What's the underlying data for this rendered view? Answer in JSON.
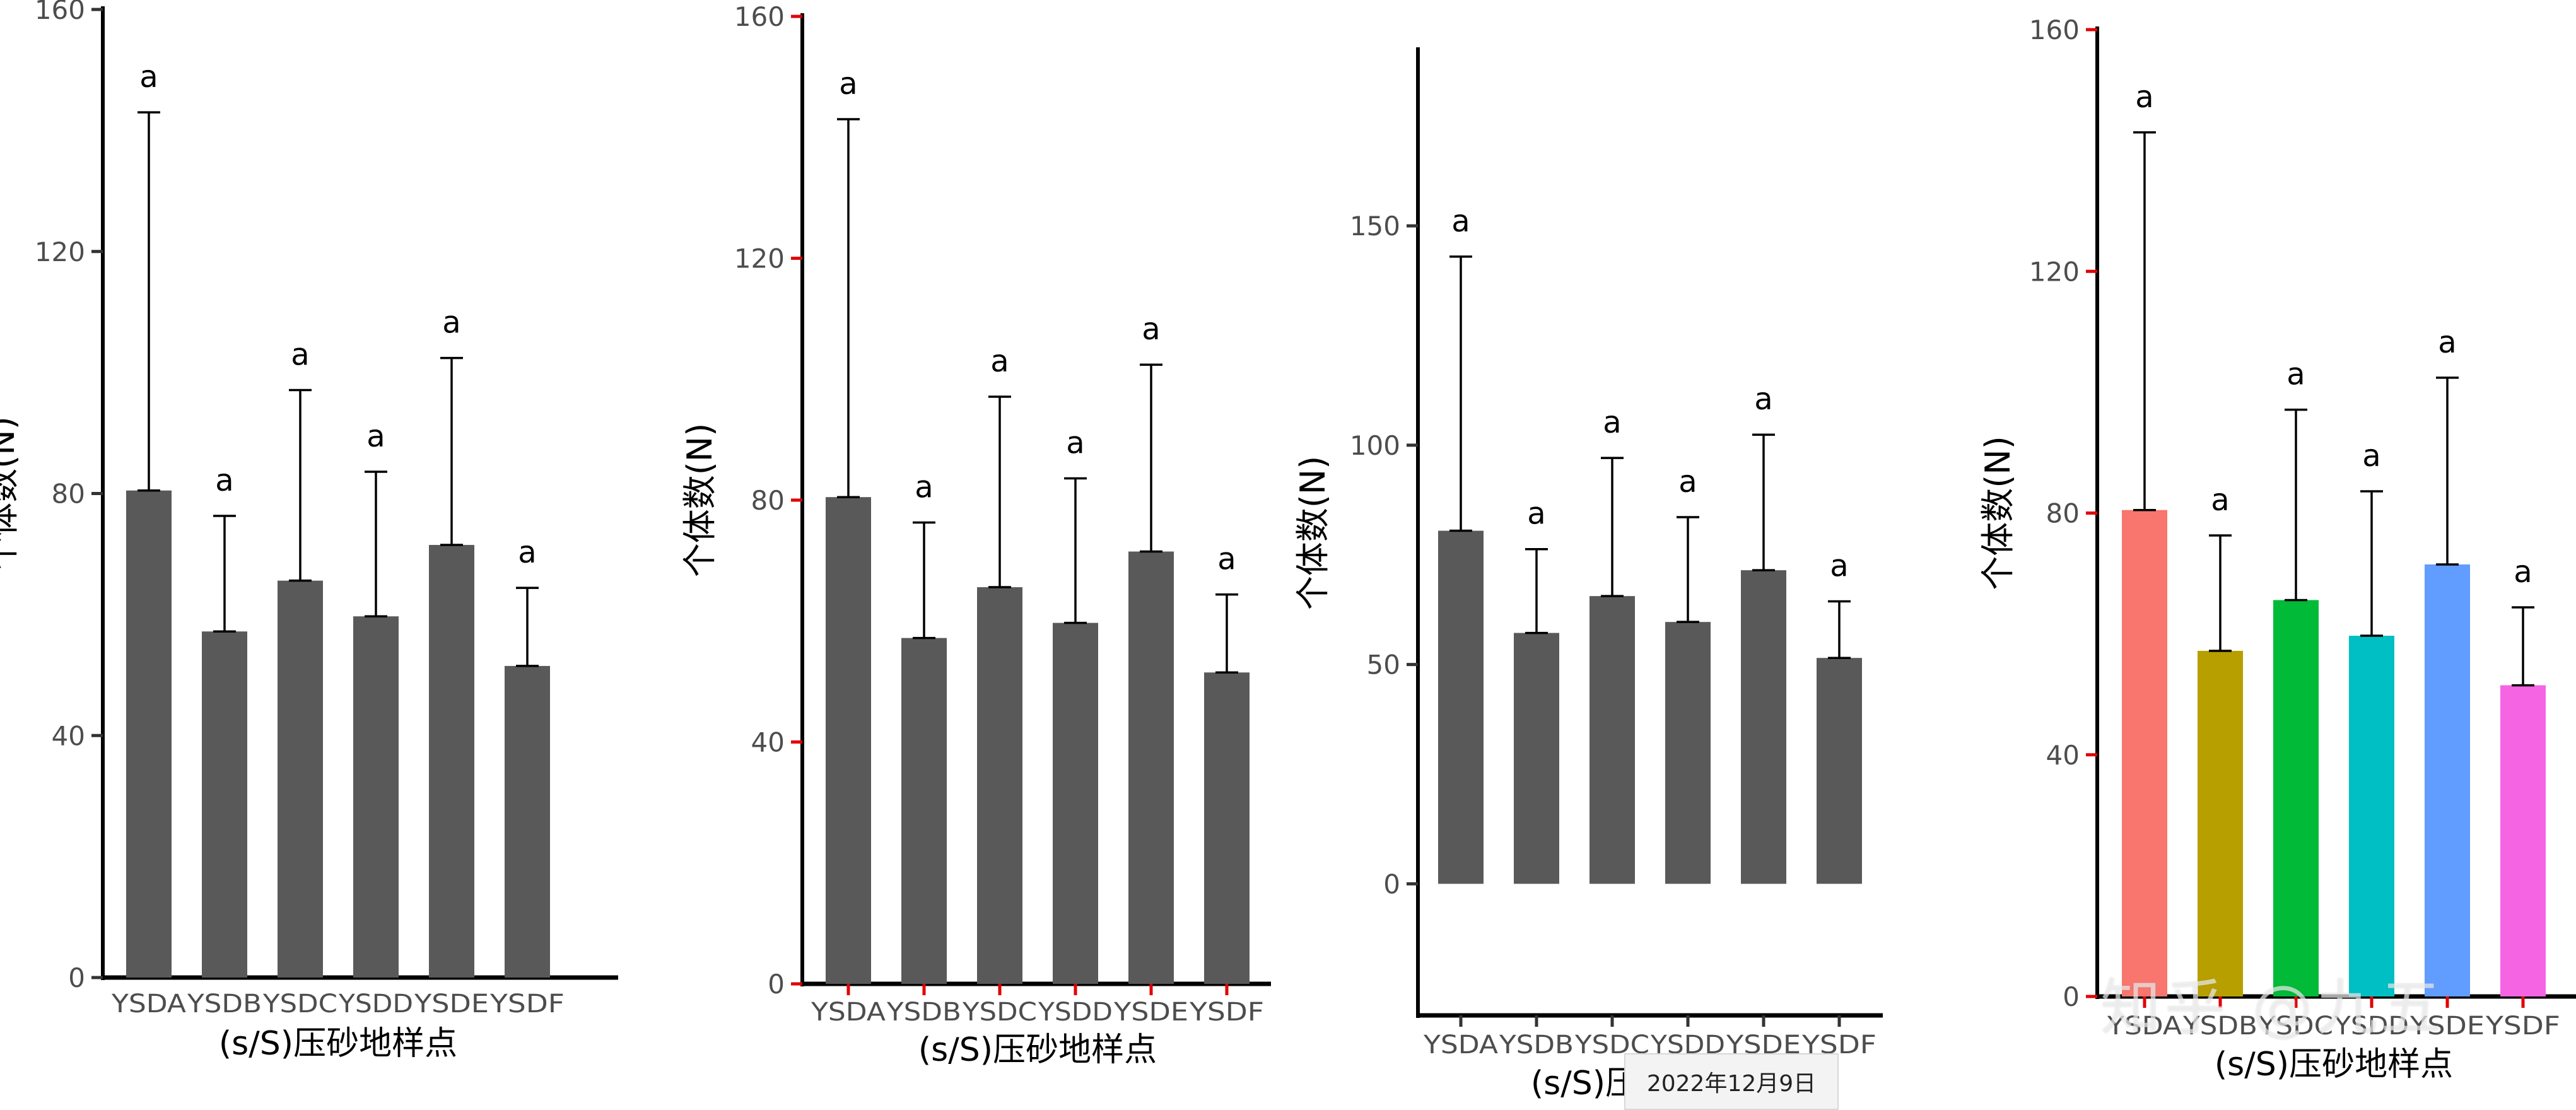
{
  "chart_data": [
    {
      "type": "bar",
      "categories": [
        "YSDA",
        "YSDB",
        "YSDC",
        "YSDD",
        "YSDE",
        "YSDF"
      ],
      "values": [
        80.5,
        57.2,
        65.6,
        59.7,
        71.5,
        51.5
      ],
      "error_upper": [
        143,
        76.3,
        97.1,
        83.6,
        102.4,
        64.4
      ],
      "significance": [
        "a",
        "a",
        "a",
        "a",
        "a",
        "a"
      ],
      "xlabel": "(s/S)压砂地样点",
      "ylabel": "个体数(N)",
      "ylim": [
        0,
        160
      ],
      "yticks": [
        0,
        40,
        80,
        120,
        160
      ],
      "bar_color": "#595959",
      "tick_color": "#333333",
      "grid": false
    },
    {
      "type": "bar",
      "categories": [
        "YSDA",
        "YSDB",
        "YSDC",
        "YSDD",
        "YSDE",
        "YSDF"
      ],
      "values": [
        80.5,
        57.2,
        65.6,
        59.7,
        71.5,
        51.5
      ],
      "error_upper": [
        143,
        76.3,
        97.1,
        83.6,
        102.4,
        64.4
      ],
      "significance": [
        "a",
        "a",
        "a",
        "a",
        "a",
        "a"
      ],
      "xlabel": "(s/S)压砂地样点",
      "ylabel": "个体数(N)",
      "ylim": [
        0,
        160
      ],
      "yticks": [
        0,
        40,
        80,
        120,
        160
      ],
      "bar_color": "#595959",
      "tick_color": "#e00000",
      "grid": false
    },
    {
      "type": "bar",
      "categories": [
        "YSDA",
        "YSDB",
        "YSDC",
        "YSDD",
        "YSDE",
        "YSDF"
      ],
      "values": [
        80.5,
        57.2,
        65.6,
        59.7,
        71.5,
        51.5
      ],
      "error_upper": [
        143,
        76.3,
        97.1,
        83.6,
        102.4,
        64.4
      ],
      "significance": [
        "a",
        "a",
        "a",
        "a",
        "a",
        "a"
      ],
      "xlabel": "(s/S)压砂地样点",
      "ylabel": "个体数(N)",
      "ylim": [
        -30,
        190
      ],
      "yticks": [
        0,
        50,
        100,
        150
      ],
      "bar_color": "#595959",
      "tick_color": "#333333",
      "grid": false
    },
    {
      "type": "bar",
      "categories": [
        "YSDA",
        "YSDB",
        "YSDC",
        "YSDD",
        "YSDE",
        "YSDF"
      ],
      "values": [
        80.5,
        57.2,
        65.6,
        59.7,
        71.5,
        51.5
      ],
      "error_upper": [
        143,
        76.3,
        97.1,
        83.6,
        102.4,
        64.4
      ],
      "significance": [
        "a",
        "a",
        "a",
        "a",
        "a",
        "a"
      ],
      "xlabel": "(s/S)压砂地样点",
      "ylabel": "个体数(N)",
      "ylim": [
        0,
        160
      ],
      "yticks": [
        0,
        40,
        80,
        120,
        160
      ],
      "bar_colors": [
        "#F8766D",
        "#B79F00",
        "#00BA38",
        "#00BFC4",
        "#619CFF",
        "#F564E3"
      ],
      "tick_color": "#e00000",
      "grid": false
    }
  ],
  "footer": {
    "date_stamp": "2022年12月9日",
    "watermark": "知乎 @九五"
  }
}
